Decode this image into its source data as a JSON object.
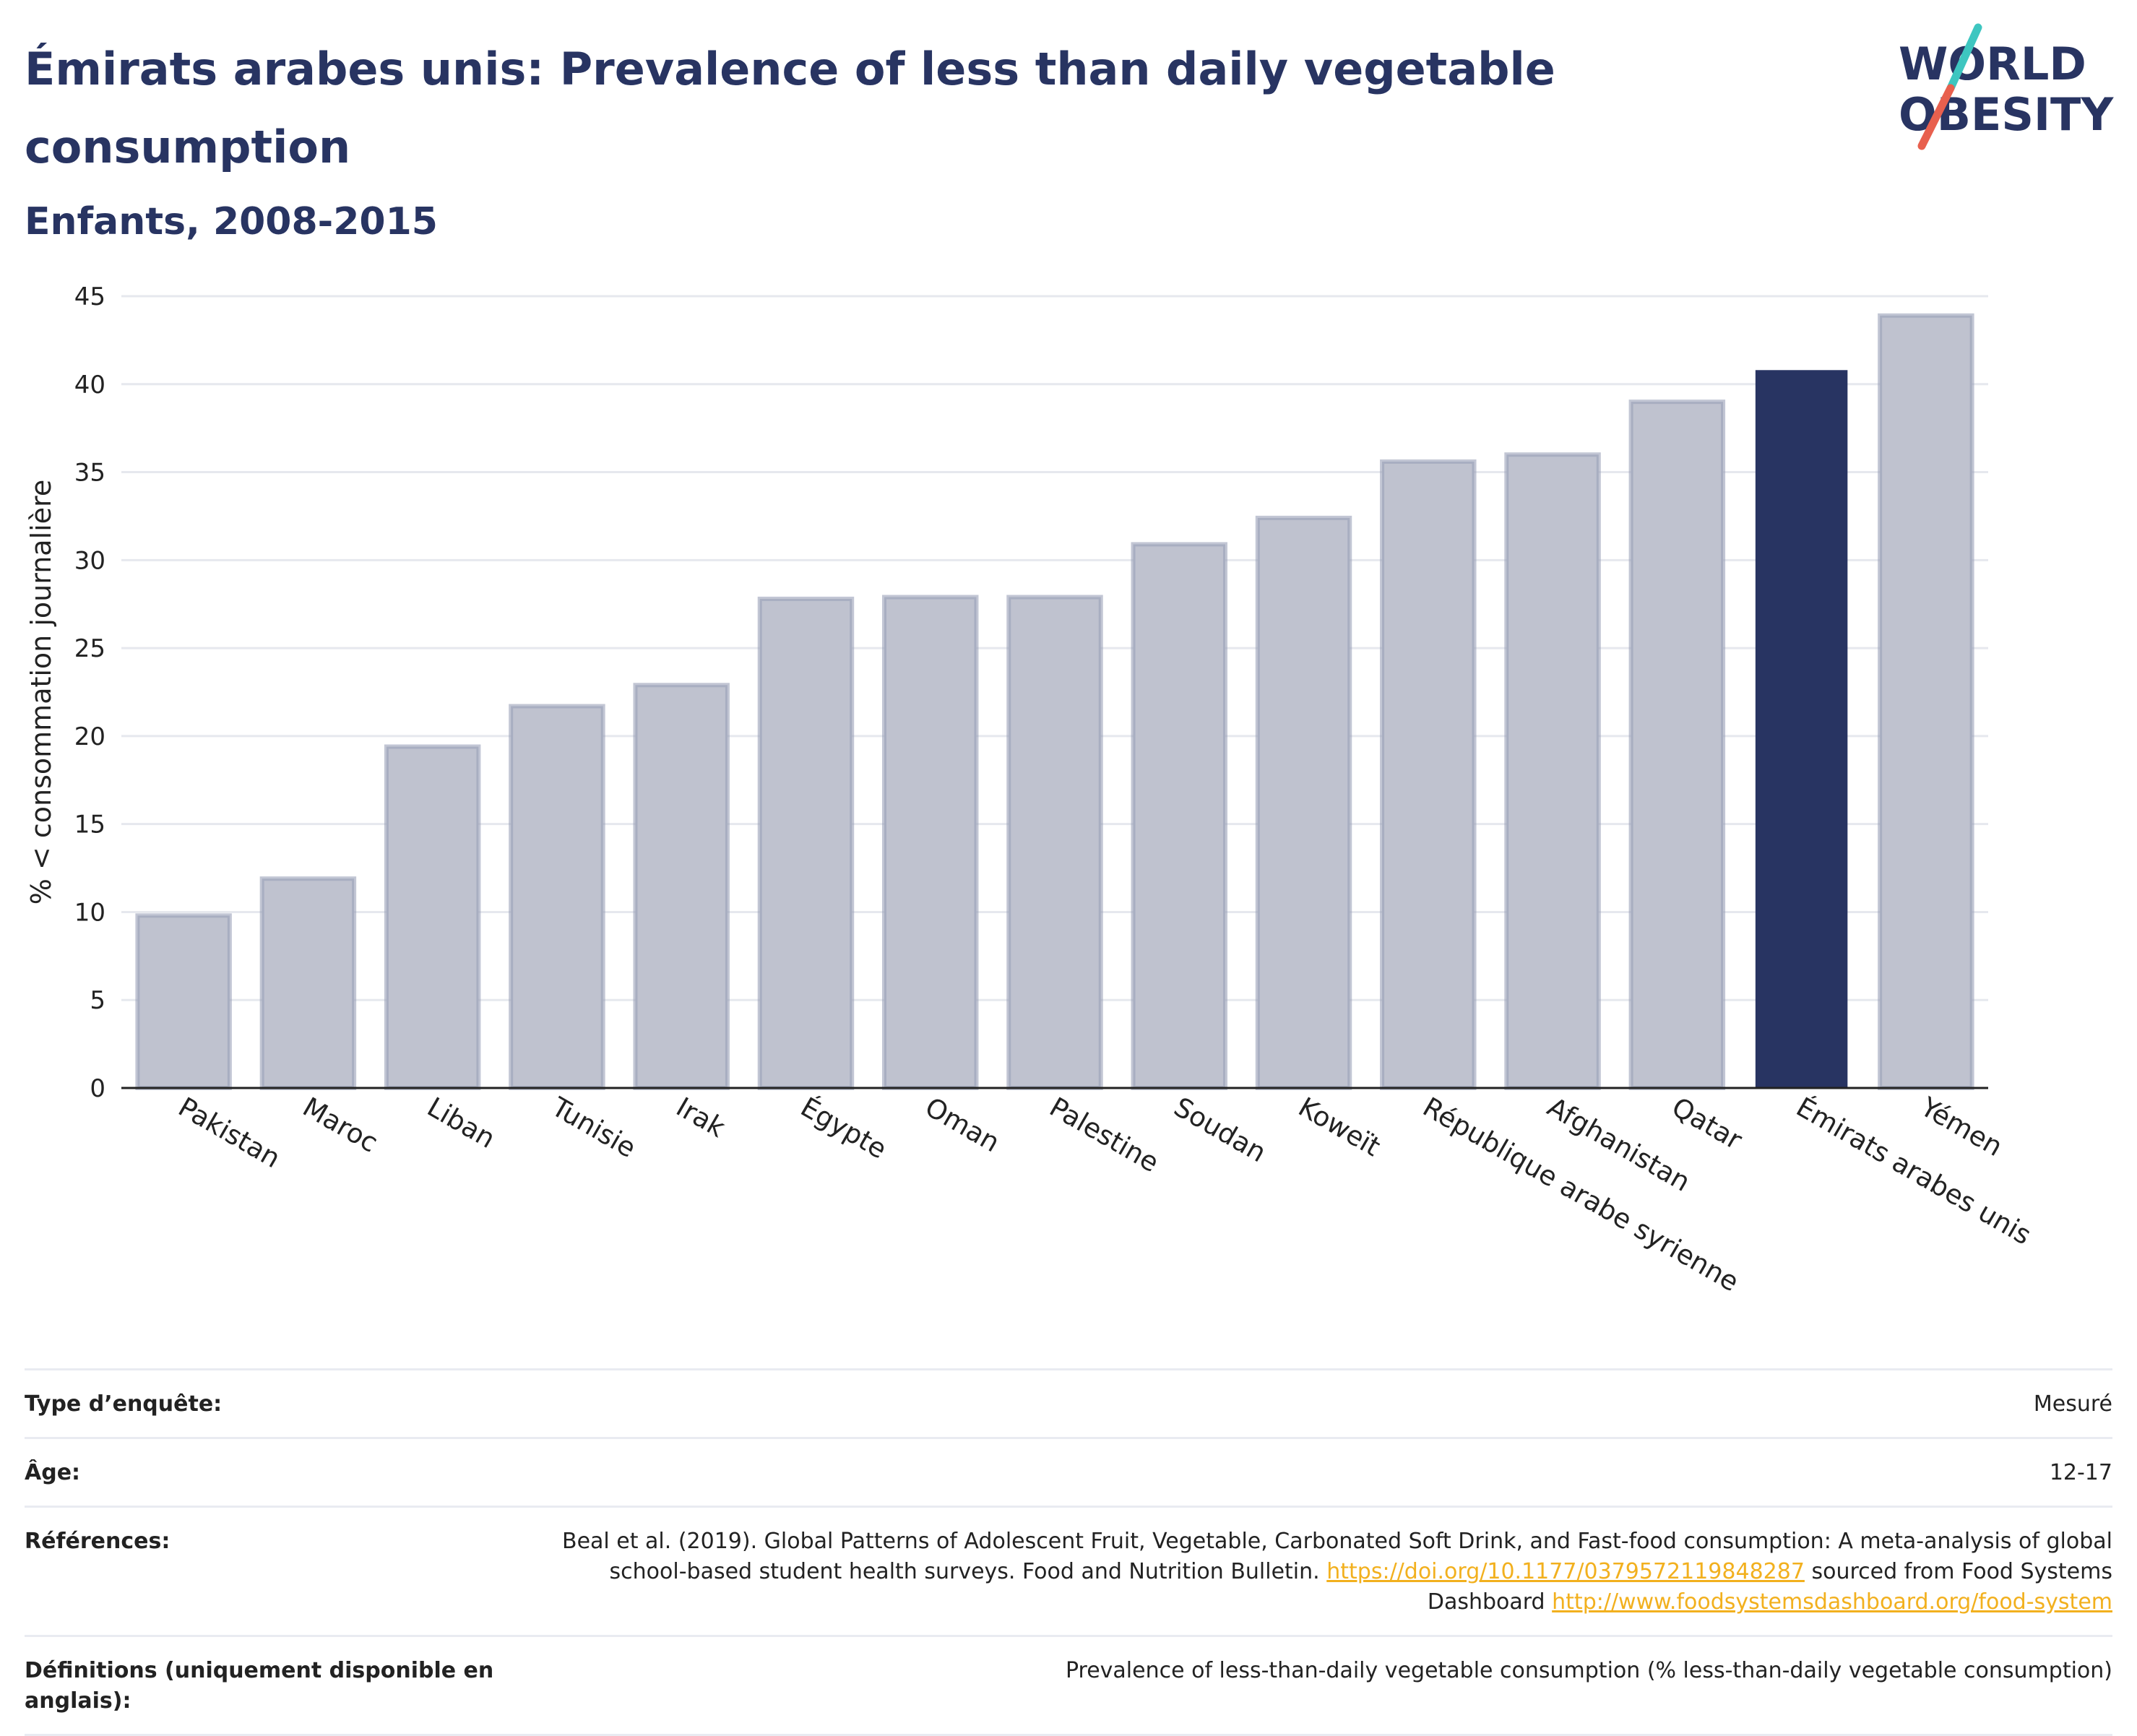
{
  "title": "Émirats arabes unis: Prevalence of less than daily vegetable consumption",
  "subtitle": "Enfants, 2008-2015",
  "logo": {
    "line1": "WORLD",
    "line2": "OBESITY",
    "colors": {
      "text": "#283462",
      "slash_top": "#3ec6c0",
      "slash_bottom": "#e8604e"
    }
  },
  "colors": {
    "bar": "#bfc2cf",
    "bar_border": "#9aa0b8",
    "highlight": "#283462",
    "grid": "#e6e8ee",
    "axis": "#222222"
  },
  "chart_data": {
    "type": "bar",
    "title": "",
    "xlabel": "",
    "ylabel": "% < consommation journalière",
    "ylim": [
      0,
      45
    ],
    "yticks": [
      0,
      5,
      10,
      15,
      20,
      25,
      30,
      35,
      40,
      45
    ],
    "grid": true,
    "categories": [
      "Pakistan",
      "Maroc",
      "Liban",
      "Tunisie",
      "Irak",
      "Égypte",
      "Oman",
      "Palestine",
      "Soudan",
      "Koweït",
      "République arabe syrienne",
      "Afghanistan",
      "Qatar",
      "Émirats arabes unis",
      "Yémen"
    ],
    "values": [
      9.8,
      11.9,
      19.4,
      21.7,
      22.9,
      27.8,
      27.9,
      27.9,
      30.9,
      32.4,
      35.6,
      36.0,
      39.0,
      40.8,
      43.9
    ],
    "highlight": "Émirats arabes unis"
  },
  "info": {
    "survey_type": {
      "label": "Type d’enquête:",
      "value": "Mesuré"
    },
    "age": {
      "label": "Âge:",
      "value": "12-17"
    },
    "references": {
      "label": "Références:",
      "text1": "Beal et al. (2019). Global Patterns of Adolescent Fruit, Vegetable, Carbonated Soft Drink, and Fast-food consumption: A meta-analysis of global school-based student health surveys. Food and Nutrition Bulletin.",
      "link1": "https://doi.org/10.1177/0379572119848287",
      "text2": "sourced from Food Systems Dashboard",
      "link2": "http://www.foodsystemsdashboard.org/food-system"
    },
    "definitions": {
      "label": "Définitions (uniquement disponible en anglais):",
      "value": "Prevalence of less-than-daily vegetable consumption (% less-than-daily vegetable consumption)"
    }
  }
}
